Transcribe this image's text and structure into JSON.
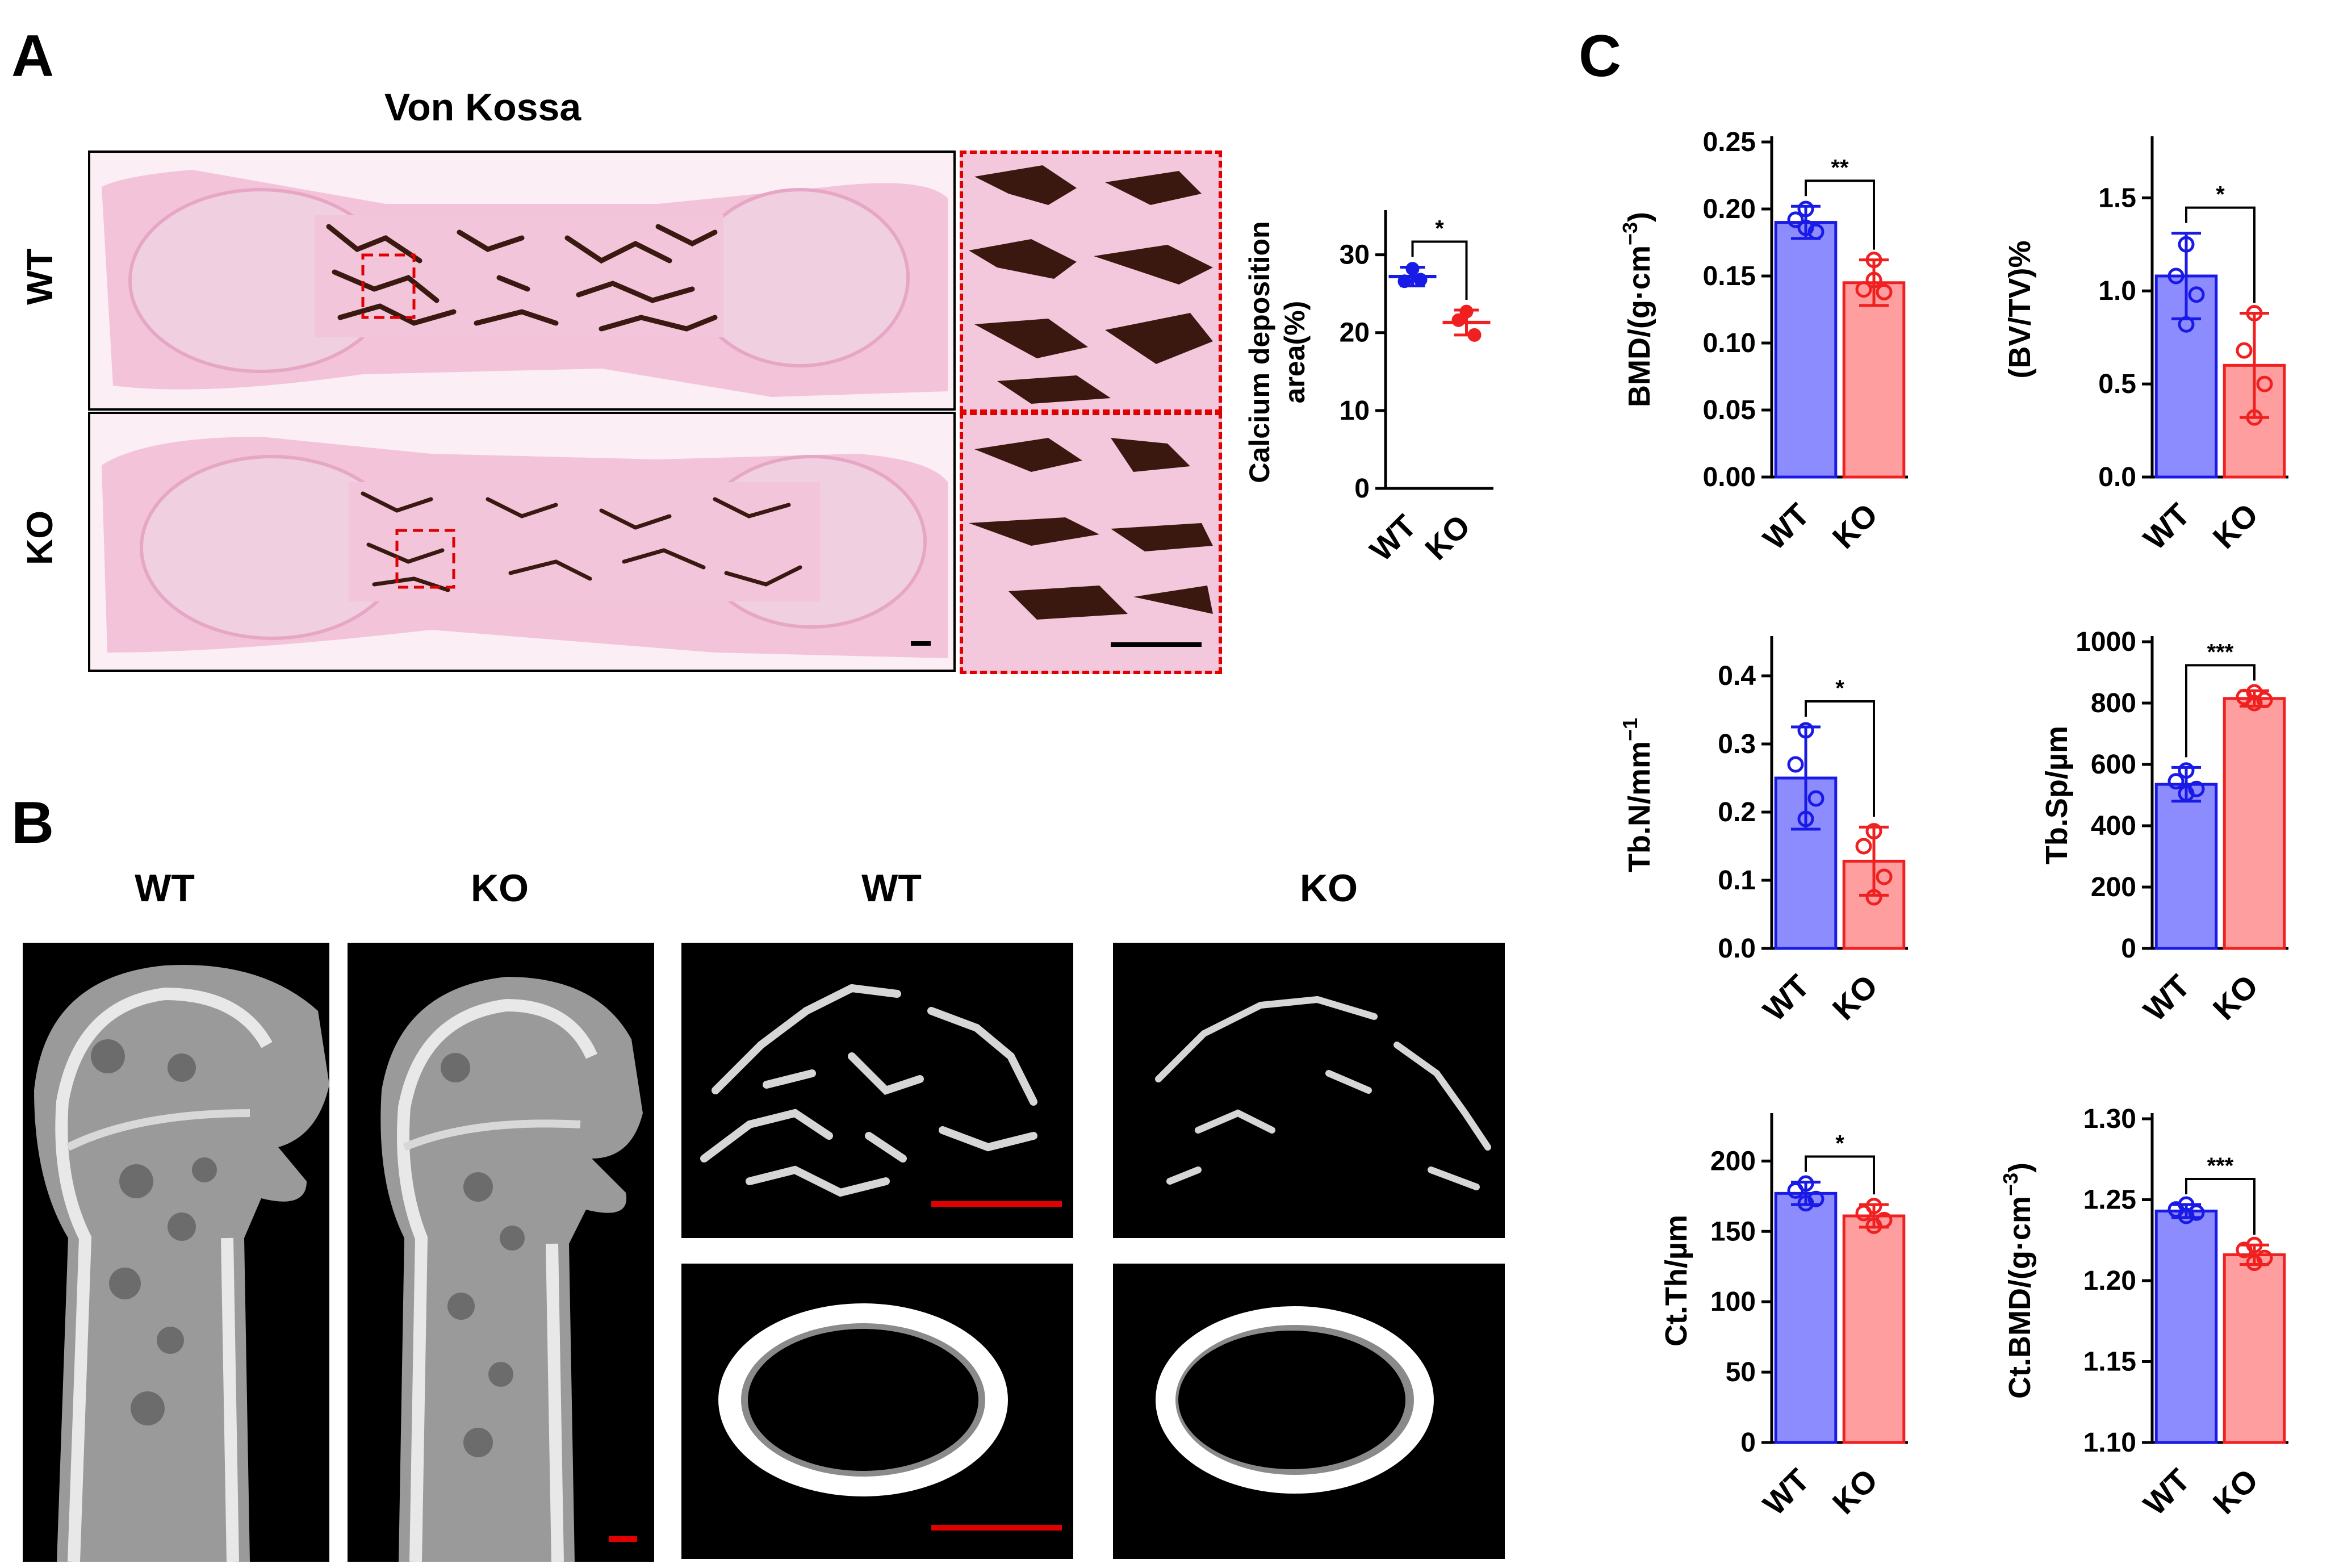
{
  "panel_letters": {
    "a": "A",
    "b": "B",
    "c": "C"
  },
  "panel_a": {
    "title": "Von Kossa",
    "row_labels": [
      "WT",
      "KO"
    ],
    "images": [
      {
        "name": "wt-von-kossa-section"
      },
      {
        "name": "wt-von-kossa-zoom"
      },
      {
        "name": "ko-von-kossa-section"
      },
      {
        "name": "ko-von-kossa-zoom"
      }
    ]
  },
  "panel_b": {
    "headers": [
      "WT",
      "KO",
      "WT",
      "KO"
    ],
    "images": [
      {
        "name": "wt-femur-3d-render"
      },
      {
        "name": "ko-femur-3d-render"
      },
      {
        "name": "wt-trabecular-render"
      },
      {
        "name": "ko-trabecular-render"
      },
      {
        "name": "wt-cortical-ring-render"
      },
      {
        "name": "ko-cortical-ring-render"
      }
    ]
  },
  "colors": {
    "wt_stroke": "#1a1ae6",
    "wt_fill": "#8c8cff",
    "ko_stroke": "#f02020",
    "ko_fill": "#ff9e9e",
    "scale_bar_red": "#e00000"
  },
  "chart_data": [
    {
      "id": "calcium",
      "type": "scatter",
      "ylabel_lines": [
        "Calcium deposition",
        "area(%)"
      ],
      "categories": [
        "WT",
        "KO"
      ],
      "ylim": [
        0,
        35
      ],
      "yticks": [
        "0",
        "10",
        "20",
        "30"
      ],
      "series": [
        {
          "name": "WT",
          "mean": 27.2,
          "sd": 1.2,
          "points": [
            28.2,
            26.6,
            26.8
          ]
        },
        {
          "name": "KO",
          "mean": 21.3,
          "sd": 1.6,
          "points": [
            22.7,
            21.6,
            19.7
          ]
        }
      ],
      "significance": "*"
    },
    {
      "id": "bmd",
      "type": "bar",
      "ylabel": "BMD/(g·cm",
      "ylabel_sup": "−3",
      "ylabel_tail": ")",
      "categories": [
        "WT",
        "KO"
      ],
      "ylim": [
        0,
        0.25
      ],
      "yticks": [
        "0.00",
        "0.05",
        "0.10",
        "0.15",
        "0.20",
        "0.25"
      ],
      "series": [
        {
          "name": "WT",
          "mean": 0.19,
          "sd": 0.012,
          "points": [
            0.2,
            0.192,
            0.183,
            0.186
          ]
        },
        {
          "name": "KO",
          "mean": 0.145,
          "sd": 0.017,
          "points": [
            0.162,
            0.14,
            0.138,
            0.147
          ]
        }
      ],
      "significance": "**"
    },
    {
      "id": "bvtv",
      "type": "bar",
      "ylabel": "(BV/TV)%",
      "ylabel_sup": "",
      "ylabel_tail": "",
      "categories": [
        "WT",
        "KO"
      ],
      "ylim": [
        0,
        1.8
      ],
      "yticks": [
        "0.0",
        "0.5",
        "1.0",
        "1.5"
      ],
      "series": [
        {
          "name": "WT",
          "mean": 1.08,
          "sd": 0.23,
          "points": [
            1.25,
            1.08,
            0.98,
            0.82
          ]
        },
        {
          "name": "KO",
          "mean": 0.6,
          "sd": 0.28,
          "points": [
            0.88,
            0.68,
            0.5,
            0.32
          ]
        }
      ],
      "significance": "*"
    },
    {
      "id": "tbn",
      "type": "bar",
      "ylabel": "Tb.N/mm",
      "ylabel_sup": "−1",
      "ylabel_tail": "",
      "categories": [
        "WT",
        "KO"
      ],
      "ylim": [
        0,
        0.45
      ],
      "yticks": [
        "0.0",
        "0.1",
        "0.2",
        "0.3",
        "0.4"
      ],
      "series": [
        {
          "name": "WT",
          "mean": 0.25,
          "sd": 0.075,
          "points": [
            0.32,
            0.27,
            0.22,
            0.19
          ]
        },
        {
          "name": "KO",
          "mean": 0.128,
          "sd": 0.05,
          "points": [
            0.172,
            0.15,
            0.105,
            0.075
          ]
        }
      ],
      "significance": "*"
    },
    {
      "id": "tbsp",
      "type": "bar",
      "ylabel": "Tb.Sp/µm",
      "ylabel_sup": "",
      "ylabel_tail": "",
      "categories": [
        "WT",
        "KO"
      ],
      "ylim": [
        0,
        1000
      ],
      "yticks": [
        "0",
        "200",
        "400",
        "600",
        "800",
        "1000"
      ],
      "series": [
        {
          "name": "WT",
          "mean": 535,
          "sd": 55,
          "points": [
            580,
            545,
            520,
            505
          ]
        },
        {
          "name": "KO",
          "mean": 815,
          "sd": 25,
          "points": [
            835,
            820,
            810,
            800
          ]
        }
      ],
      "significance": "***"
    },
    {
      "id": "ctth",
      "type": "bar",
      "ylabel": "Ct.Th/µm",
      "ylabel_sup": "",
      "ylabel_tail": "",
      "categories": [
        "WT",
        "KO"
      ],
      "ylim": [
        0,
        230
      ],
      "yticks": [
        "0",
        "50",
        "100",
        "150",
        "200"
      ],
      "series": [
        {
          "name": "WT",
          "mean": 177,
          "sd": 8,
          "points": [
            184,
            179,
            173,
            170
          ]
        },
        {
          "name": "KO",
          "mean": 161,
          "sd": 8,
          "points": [
            168,
            163,
            158,
            154
          ]
        }
      ],
      "significance": "*"
    },
    {
      "id": "ctbmd",
      "type": "bar",
      "ylabel": "Ct.BMD/(g·cm",
      "ylabel_sup": "−3",
      "ylabel_tail": ")",
      "categories": [
        "WT",
        "KO"
      ],
      "ylim": [
        1.1,
        1.3
      ],
      "yticks": [
        "1.10",
        "1.15",
        "1.20",
        "1.25",
        "1.30"
      ],
      "series": [
        {
          "name": "WT",
          "mean": 1.243,
          "sd": 0.004,
          "points": [
            1.247,
            1.244,
            1.242,
            1.24
          ]
        },
        {
          "name": "KO",
          "mean": 1.216,
          "sd": 0.006,
          "points": [
            1.222,
            1.219,
            1.214,
            1.211
          ]
        }
      ],
      "significance": "***"
    }
  ]
}
